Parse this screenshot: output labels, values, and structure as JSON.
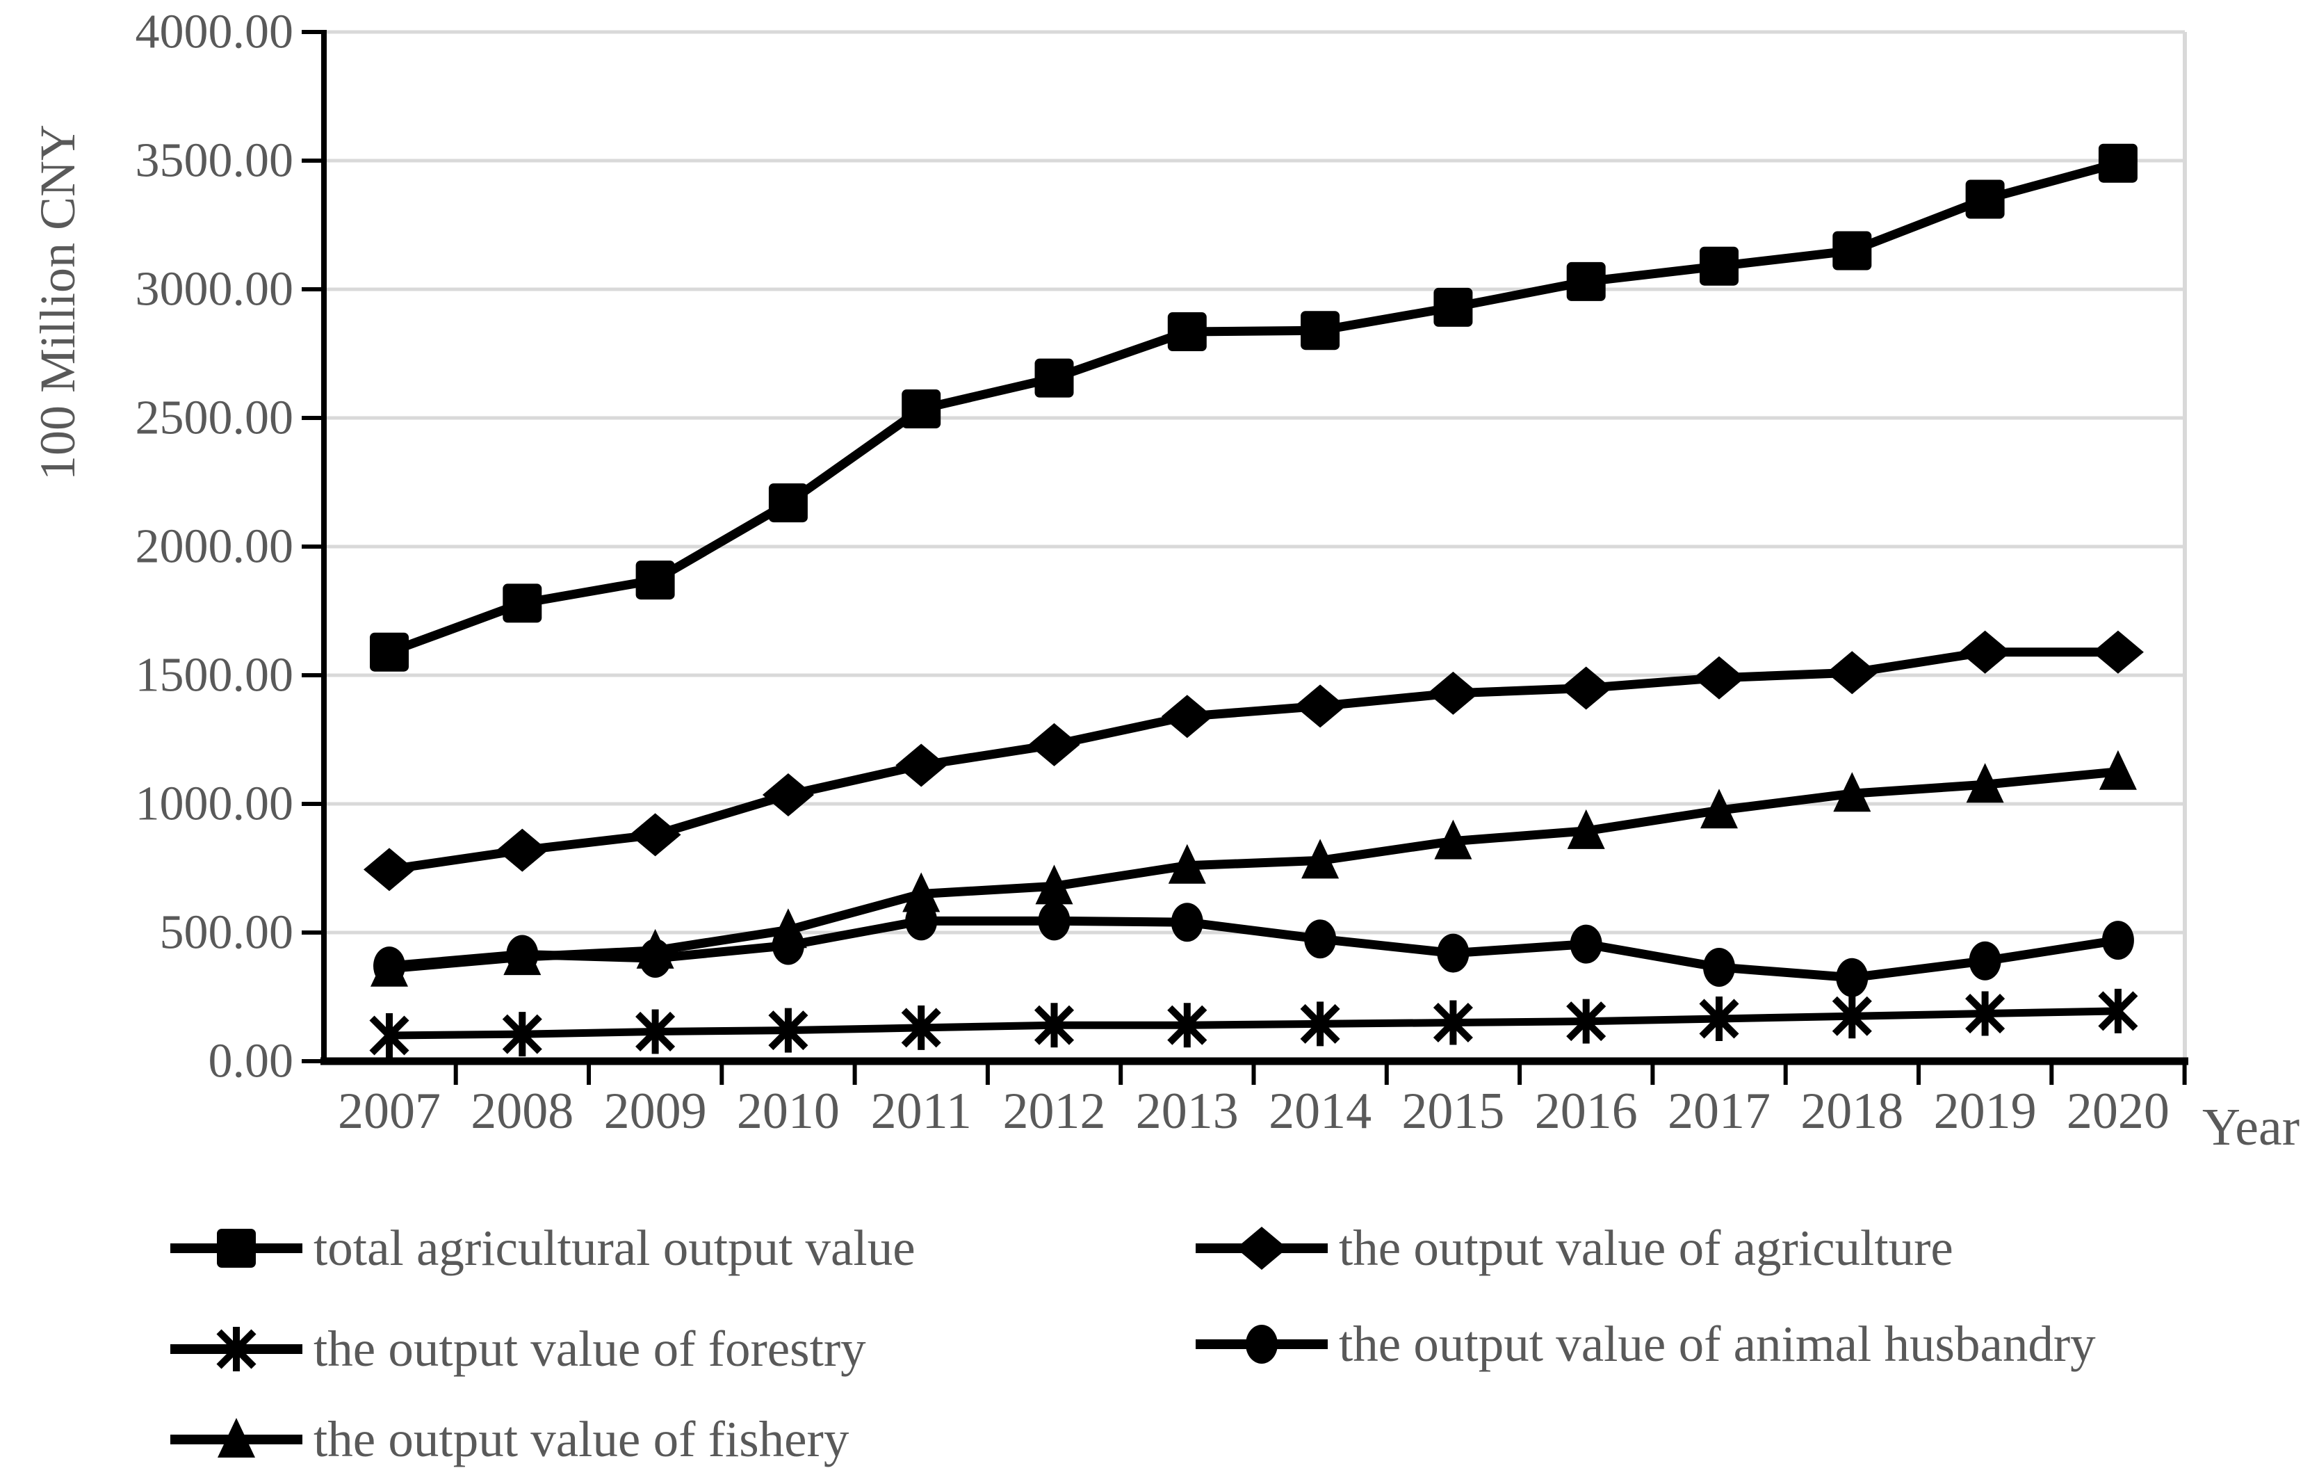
{
  "colors": {
    "series": "#000000",
    "text_gray": "#595959",
    "gridline": "#d9d9d9",
    "axis": "#000000",
    "background": "#ffffff"
  },
  "chart_data": {
    "type": "line",
    "title": "",
    "xlabel": "Year",
    "ylabel": "100 Million CNY",
    "ylim": [
      0,
      4000
    ],
    "ytick_step": 500,
    "ytick_labels": [
      "0.00",
      "500.00",
      "1000.00",
      "1500.00",
      "2000.00",
      "2500.00",
      "3000.00",
      "3500.00",
      "4000.00"
    ],
    "grid": true,
    "legend_position": "bottom",
    "categories": [
      "2007",
      "2008",
      "2009",
      "2010",
      "2011",
      "2012",
      "2013",
      "2014",
      "2015",
      "2016",
      "2017",
      "2018",
      "2019",
      "2020"
    ],
    "series": [
      {
        "name": "total agricultural output value",
        "marker": "square",
        "values": [
          1590,
          1780,
          1870,
          2170,
          2535,
          2655,
          2835,
          2840,
          2930,
          3030,
          3090,
          3150,
          3350,
          3490
        ]
      },
      {
        "name": "the output value of agriculture",
        "marker": "diamond",
        "values": [
          745,
          820,
          880,
          1035,
          1150,
          1230,
          1340,
          1380,
          1430,
          1450,
          1490,
          1510,
          1590,
          1590
        ]
      },
      {
        "name": "the output value of forestry",
        "marker": "asterisk",
        "values": [
          100,
          105,
          115,
          120,
          130,
          140,
          140,
          145,
          150,
          155,
          165,
          175,
          185,
          195
        ]
      },
      {
        "name": "the output value of animal husbandry",
        "marker": "circle",
        "values": [
          370,
          415,
          400,
          450,
          545,
          545,
          540,
          475,
          420,
          455,
          365,
          325,
          390,
          470
        ]
      },
      {
        "name": "the output value of fishery",
        "marker": "triangle",
        "values": [
          360,
          405,
          430,
          510,
          650,
          680,
          760,
          780,
          855,
          895,
          975,
          1040,
          1075,
          1125
        ]
      }
    ]
  }
}
